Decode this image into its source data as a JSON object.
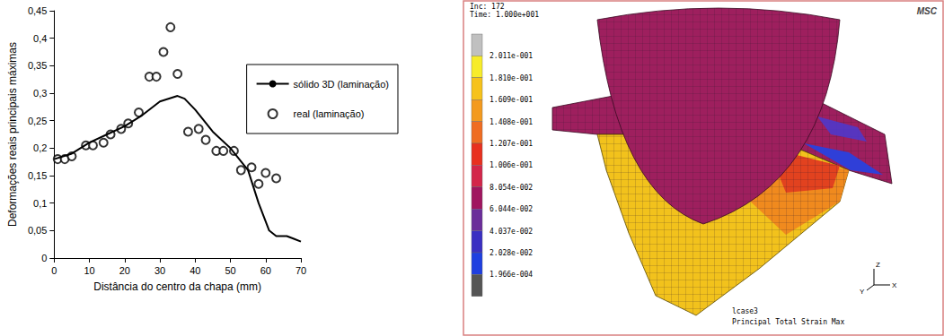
{
  "chart_data": {
    "type": "line",
    "x_label": "Distância do centro da chapa (mm)",
    "y_label": "Deformações reais principais máximas",
    "xlim": [
      0,
      70
    ],
    "xticks": [
      0,
      10,
      20,
      30,
      40,
      50,
      60,
      70
    ],
    "ylim": [
      0,
      0.45
    ],
    "yticks": [
      0,
      {
        "value": 0.05,
        "label": "0,05"
      },
      {
        "value": 0.1,
        "label": "0,1"
      },
      {
        "value": 0.15,
        "label": "0,15"
      },
      {
        "value": 0.2,
        "label": "0,2"
      },
      {
        "value": 0.25,
        "label": "0,25"
      },
      {
        "value": 0.3,
        "label": "0,3"
      },
      {
        "value": 0.35,
        "label": "0,35"
      },
      {
        "value": 0.4,
        "label": "0,4"
      },
      {
        "value": 0.45,
        "label": "0,45"
      }
    ],
    "grid": false,
    "legend": "right",
    "series": [
      {
        "name": "sólido 3D (laminação)",
        "type": "line",
        "color": "#000000",
        "line_style": "solid",
        "x": [
          0,
          5,
          10,
          15,
          20,
          25,
          30,
          35,
          37,
          40,
          45,
          50,
          55,
          58,
          61,
          63,
          66,
          68,
          70
        ],
        "values": [
          0.18,
          0.19,
          0.21,
          0.225,
          0.24,
          0.26,
          0.285,
          0.295,
          0.29,
          0.27,
          0.23,
          0.2,
          0.16,
          0.1,
          0.05,
          0.04,
          0.04,
          0.035,
          0.03
        ]
      },
      {
        "name": "real (laminação)",
        "type": "scatter",
        "color": "#000000",
        "marker": "emptyCircle",
        "x": [
          1,
          3,
          5,
          9,
          11,
          14,
          16,
          19,
          21,
          24,
          27,
          29,
          31,
          33,
          35,
          38,
          41,
          43,
          46,
          48,
          51,
          53,
          56,
          58,
          60,
          63
        ],
        "values": [
          0.18,
          0.18,
          0.185,
          0.205,
          0.205,
          0.21,
          0.225,
          0.235,
          0.245,
          0.265,
          0.33,
          0.33,
          0.375,
          0.42,
          0.335,
          0.23,
          0.235,
          0.215,
          0.195,
          0.195,
          0.195,
          0.16,
          0.165,
          0.135,
          0.155,
          0.145
        ]
      }
    ]
  },
  "figure": {
    "header": [
      "Inc:  172",
      "Time:  1.000e+001"
    ],
    "logo": "MSC",
    "color_bar_labels": [
      "2.011e-001",
      "1.810e-001",
      "1.609e-001",
      "1.408e-001",
      "1.207e-001",
      "1.006e-001",
      "8.054e-002",
      "6.044e-002",
      "4.037e-002",
      "2.028e-002",
      "1.966e-004"
    ],
    "axes_triad": [
      "Z",
      "Y",
      "X"
    ],
    "footer": [
      "lcase3",
      "Principal Total Strain Max"
    ]
  }
}
